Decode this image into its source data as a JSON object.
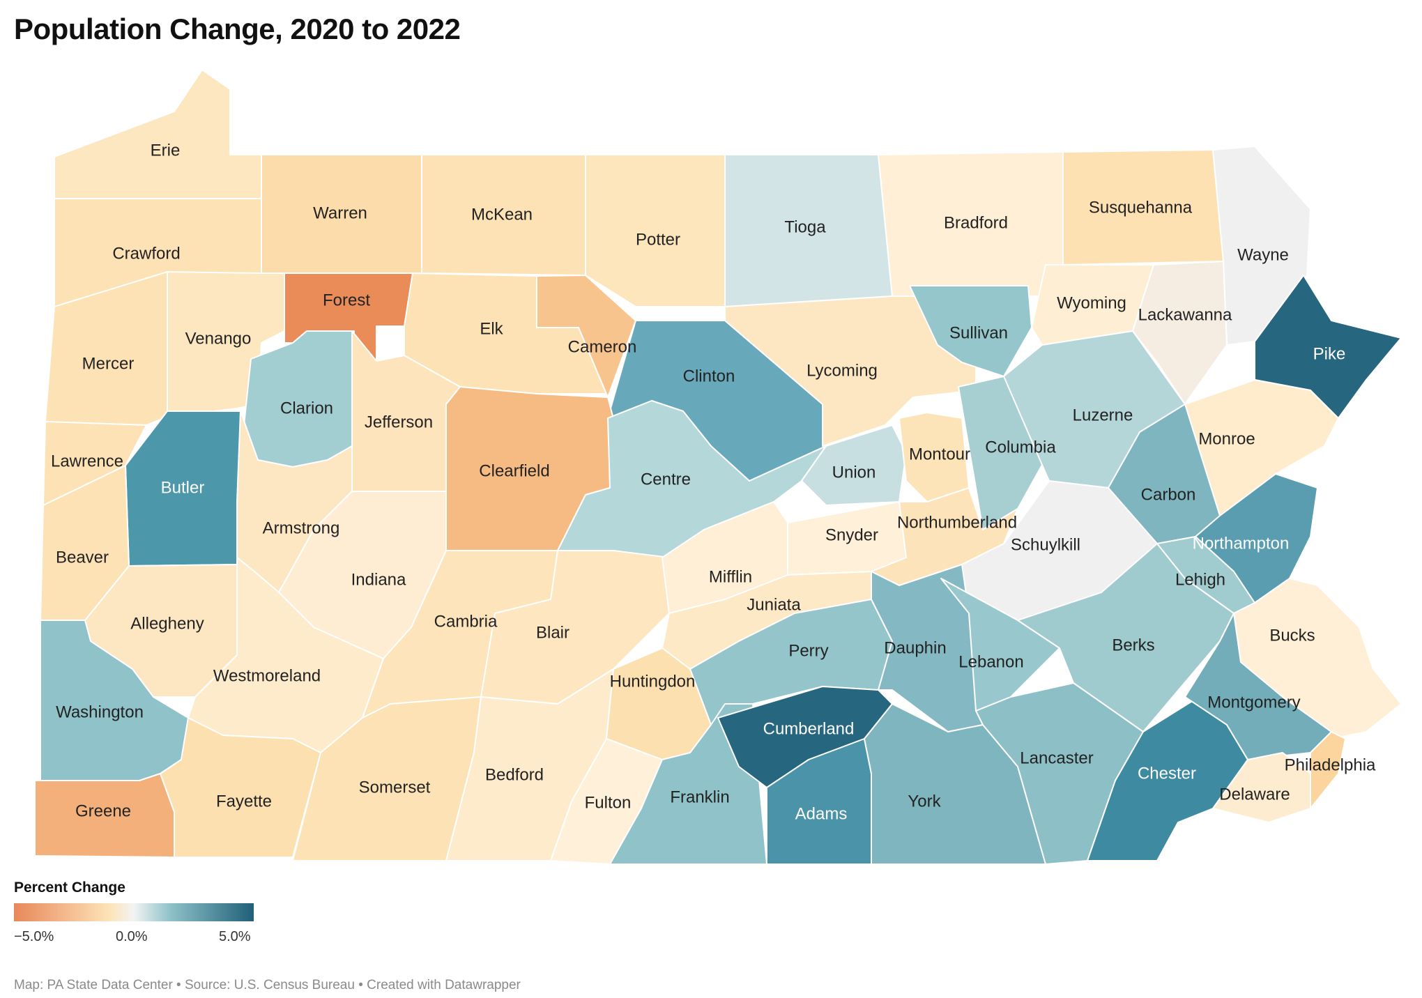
{
  "title": "Population Change, 2020 to 2022",
  "legend": {
    "title": "Percent Change",
    "ticks": [
      "−5.0%",
      "0.0%",
      "5.0%"
    ],
    "colors": [
      "#e8885a",
      "#fde4b8",
      "#f3f3f3",
      "#8fc2c9",
      "#1f5f78"
    ]
  },
  "footer": "Map: PA State Data Center • Source: U.S. Census Bureau • Created with Datawrapper",
  "counties": [
    {
      "name": "Erie",
      "color": "#fde7c0"
    },
    {
      "name": "Warren",
      "color": "#fcdcaa"
    },
    {
      "name": "McKean",
      "color": "#fde2b5"
    },
    {
      "name": "Potter",
      "color": "#fde5bc"
    },
    {
      "name": "Tioga",
      "color": "#d2e4e5"
    },
    {
      "name": "Bradford",
      "color": "#feefd6"
    },
    {
      "name": "Susquehanna",
      "color": "#fde1b3"
    },
    {
      "name": "Wayne",
      "color": "#f0f0f0"
    },
    {
      "name": "Crawford",
      "color": "#fde2b5"
    },
    {
      "name": "Forest",
      "color": "#e98c58"
    },
    {
      "name": "Elk",
      "color": "#fde2b5"
    },
    {
      "name": "Cameron",
      "color": "#f8c48e"
    },
    {
      "name": "Clinton",
      "color": "#67a9ba"
    },
    {
      "name": "Lycoming",
      "color": "#fde7c3"
    },
    {
      "name": "Sullivan",
      "color": "#94c6cb"
    },
    {
      "name": "Wyoming",
      "color": "#feefd4"
    },
    {
      "name": "Lackawanna",
      "color": "#f5ede2"
    },
    {
      "name": "Pike",
      "color": "#26667f"
    },
    {
      "name": "Mercer",
      "color": "#fde2b5"
    },
    {
      "name": "Venango",
      "color": "#fde7c0"
    },
    {
      "name": "Clarion",
      "color": "#a3ced1"
    },
    {
      "name": "Jefferson",
      "color": "#fde4bc"
    },
    {
      "name": "Clearfield",
      "color": "#f6bb82"
    },
    {
      "name": "Centre",
      "color": "#b4d7d9"
    },
    {
      "name": "Union",
      "color": "#c7dfe1"
    },
    {
      "name": "Montour",
      "color": "#fce3b8"
    },
    {
      "name": "Columbia",
      "color": "#a7cfd2"
    },
    {
      "name": "Luzerne",
      "color": "#b5d6d8"
    },
    {
      "name": "Monroe",
      "color": "#feeccd"
    },
    {
      "name": "Lawrence",
      "color": "#fde2b5"
    },
    {
      "name": "Butler",
      "color": "#4d97ab"
    },
    {
      "name": "Armstrong",
      "color": "#fde7c3"
    },
    {
      "name": "Indiana",
      "color": "#feedd3"
    },
    {
      "name": "Snyder",
      "color": "#fef0d9"
    },
    {
      "name": "Northumberland",
      "color": "#fde3ba"
    },
    {
      "name": "Schuylkill",
      "color": "#f0f0f0"
    },
    {
      "name": "Carbon",
      "color": "#7eb5bf"
    },
    {
      "name": "Northampton",
      "color": "#5a9db0"
    },
    {
      "name": "Beaver",
      "color": "#fde2b5"
    },
    {
      "name": "Allegheny",
      "color": "#fde7c3"
    },
    {
      "name": "Westmoreland",
      "color": "#feebcc"
    },
    {
      "name": "Cambria",
      "color": "#fde4bb"
    },
    {
      "name": "Blair",
      "color": "#fde6c0"
    },
    {
      "name": "Mifflin",
      "color": "#feefd6"
    },
    {
      "name": "Juniata",
      "color": "#fde9c6"
    },
    {
      "name": "Perry",
      "color": "#94c5cb"
    },
    {
      "name": "Dauphin",
      "color": "#84b9c3"
    },
    {
      "name": "Lebanon",
      "color": "#98c8cd"
    },
    {
      "name": "Berks",
      "color": "#9fcbcf"
    },
    {
      "name": "Lehigh",
      "color": "#a1cccf"
    },
    {
      "name": "Bucks",
      "color": "#feefd6"
    },
    {
      "name": "Washington",
      "color": "#8fc2c9"
    },
    {
      "name": "Greene",
      "color": "#f4b07a"
    },
    {
      "name": "Fayette",
      "color": "#fde0b0"
    },
    {
      "name": "Somerset",
      "color": "#fde2b5"
    },
    {
      "name": "Bedford",
      "color": "#feebcc"
    },
    {
      "name": "Huntingdon",
      "color": "#fde0b0"
    },
    {
      "name": "Fulton",
      "color": "#fef0d9"
    },
    {
      "name": "Franklin",
      "color": "#8fc2c9"
    },
    {
      "name": "Cumberland",
      "color": "#26667f"
    },
    {
      "name": "Adams",
      "color": "#4a93a8"
    },
    {
      "name": "York",
      "color": "#7eb5bf"
    },
    {
      "name": "Lancaster",
      "color": "#8dbfc6"
    },
    {
      "name": "Chester",
      "color": "#3e8aa0"
    },
    {
      "name": "Montgomery",
      "color": "#73adb9"
    },
    {
      "name": "Delaware",
      "color": "#feecd0"
    },
    {
      "name": "Philadelphia",
      "color": "#fbd59d"
    }
  ]
}
